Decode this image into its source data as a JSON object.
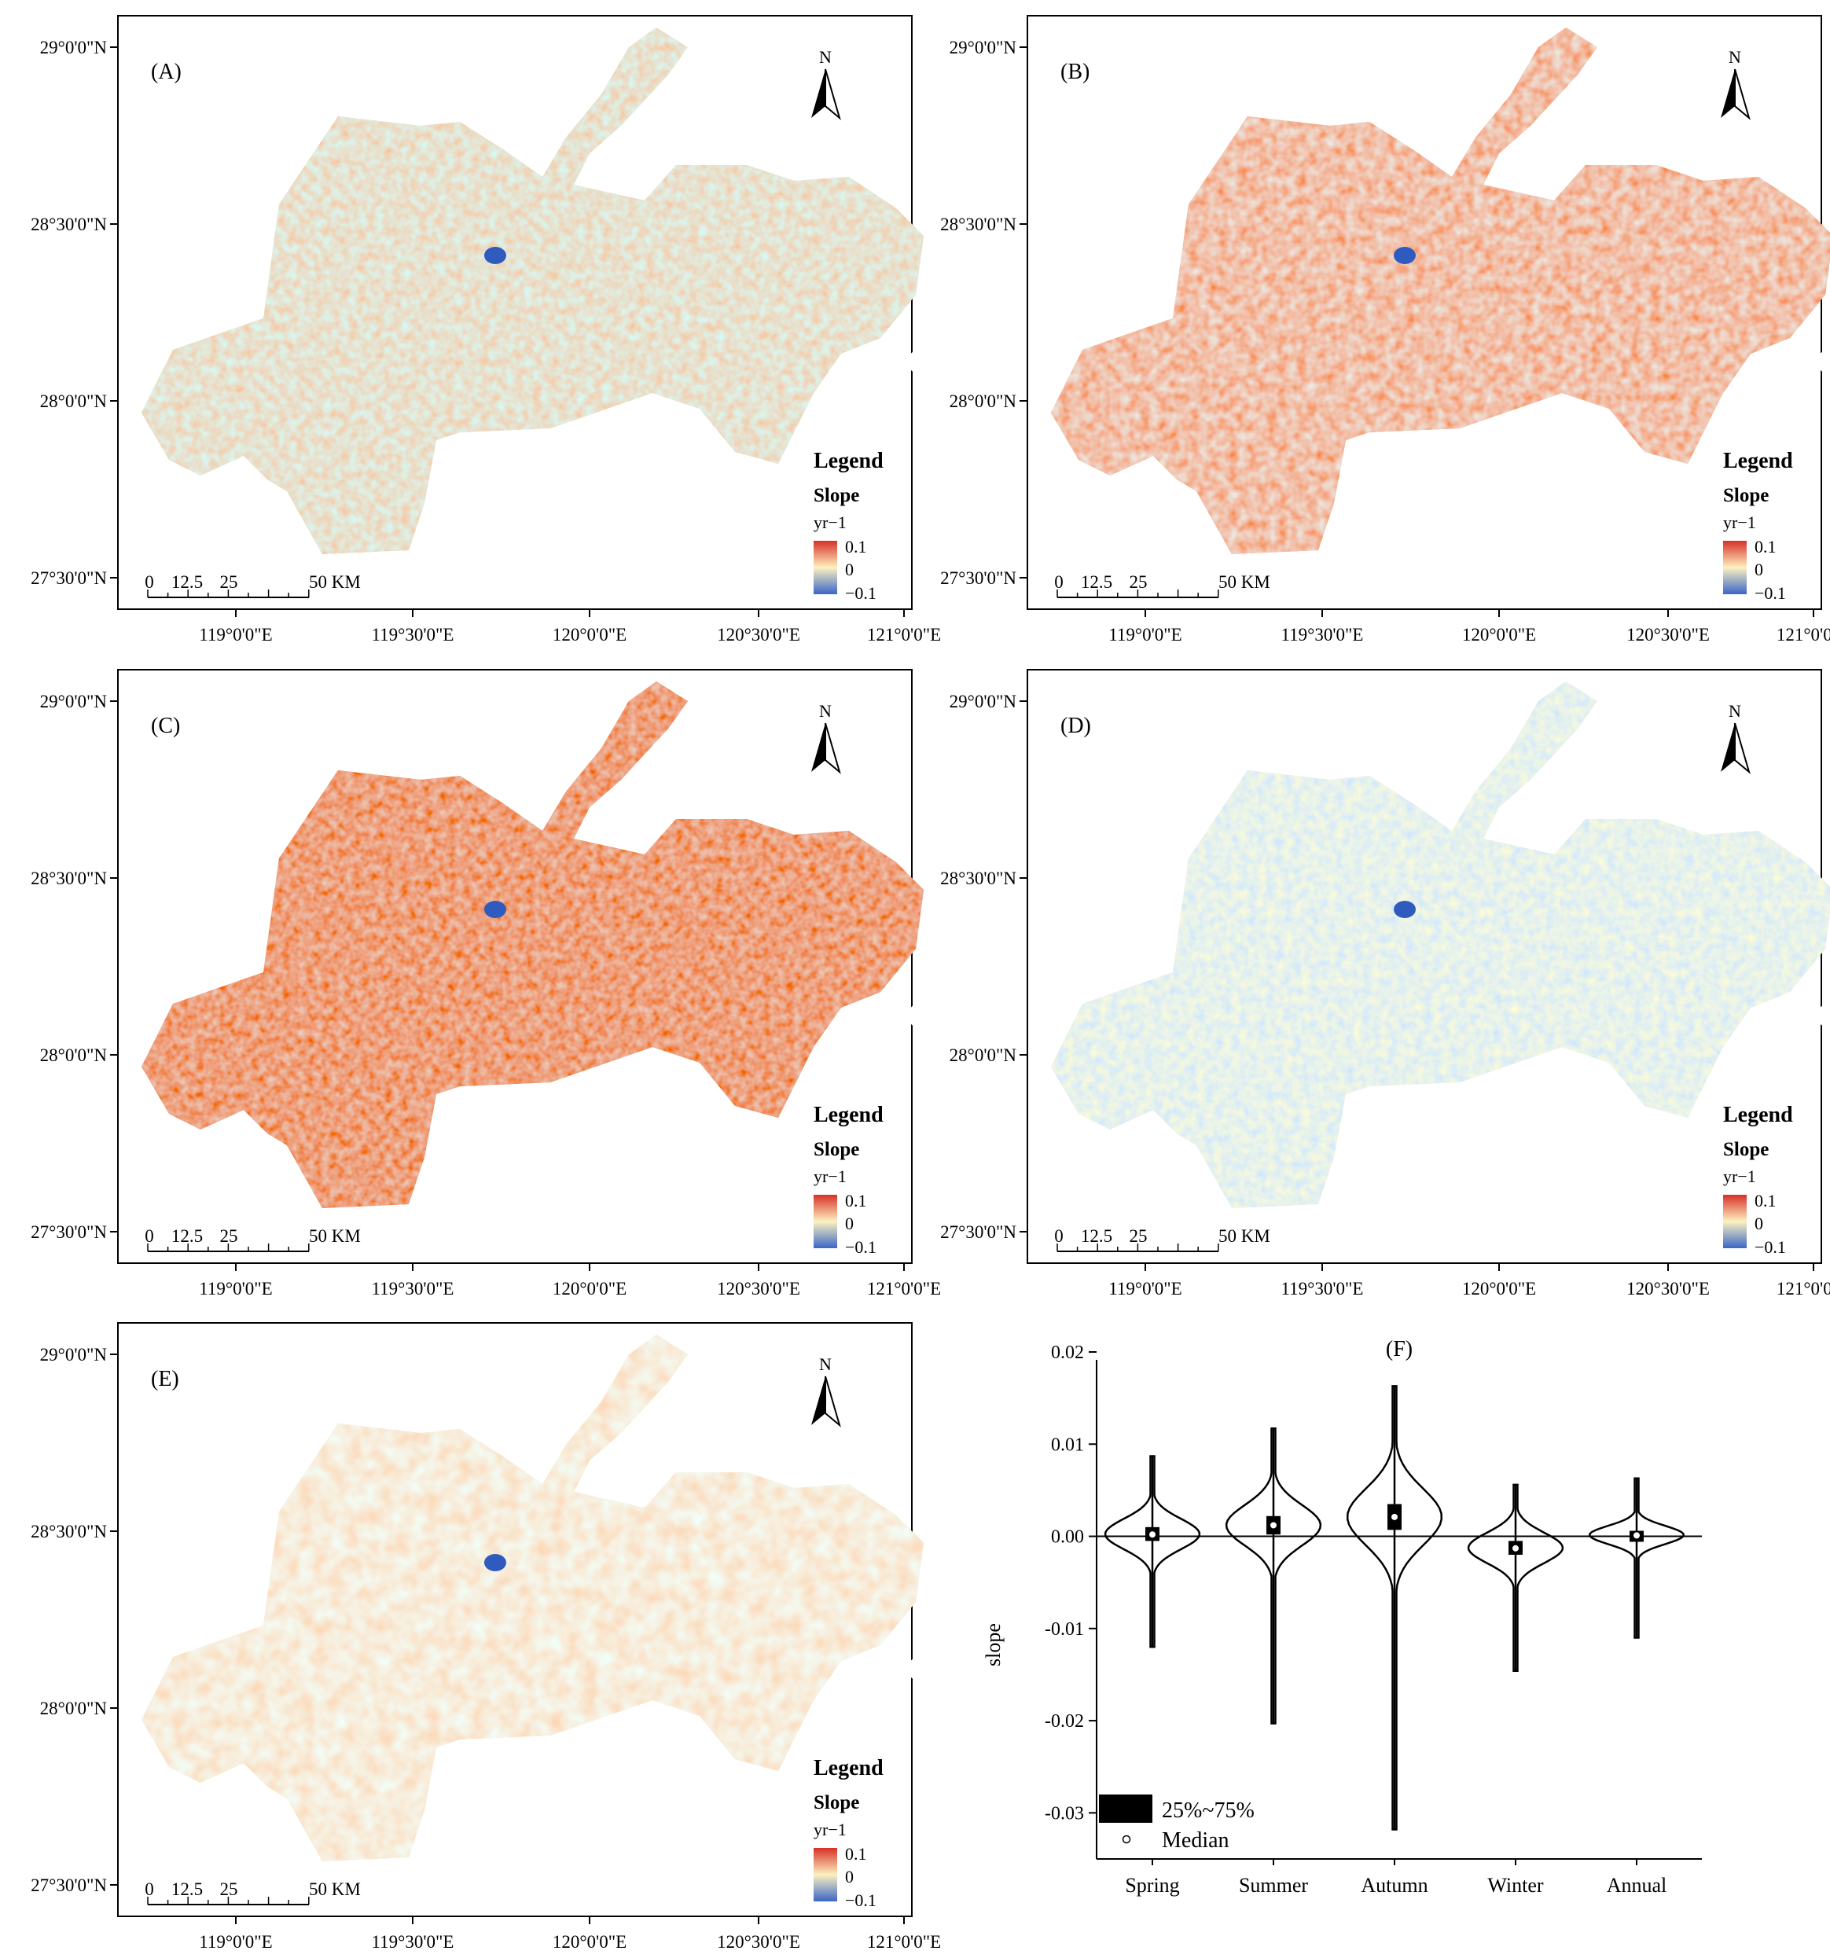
{
  "maps": [
    {
      "id": "A",
      "label": "(A)",
      "palette": "mild-warm"
    },
    {
      "id": "B",
      "label": "(B)",
      "palette": "strong-warm"
    },
    {
      "id": "C",
      "label": "(C)",
      "palette": "very-warm"
    },
    {
      "id": "D",
      "label": "(D)",
      "palette": "cool"
    },
    {
      "id": "E",
      "label": "(E)",
      "palette": "mild-warm-light"
    }
  ],
  "map_common": {
    "north": "N",
    "legend_title": "Legend",
    "legend_subtitle": "Slope",
    "legend_unit": "yr−1",
    "legend_max": "0.1",
    "legend_mid": "0",
    "legend_min": "−0.1",
    "scale_labels": [
      "0",
      "12.5",
      "25",
      "50 KM"
    ],
    "lat_ticks": [
      "29°0'0\"N",
      "28°30'0\"N",
      "28°0'0\"N",
      "27°30'0\"N"
    ],
    "lon_ticks": [
      "119°0'0\"E",
      "119°30'0\"E",
      "120°0'0\"E",
      "120°30'0\"E",
      "121°0'0\"E"
    ]
  },
  "colors": {
    "warm_high": "#d73027",
    "warm_mid": "#f4a582",
    "neutral": "#fdf1c0",
    "cool_mid": "#b9c8e4",
    "cool_high": "#3a66c8"
  },
  "chart_data": {
    "type": "violin",
    "title": "(F)",
    "xlabel": "",
    "ylabel": "slope",
    "ylim": [
      -0.035,
      0.02
    ],
    "yticks": [
      "0.02",
      "0.01",
      "0.00",
      "-0.01",
      "-0.02",
      "-0.03"
    ],
    "categories": [
      "Spring",
      "Summer",
      "Autumn",
      "Winter",
      "Annual"
    ],
    "series": [
      {
        "category": "Spring",
        "min": -0.012,
        "max": 0.0087,
        "q1": -0.0005,
        "q3": 0.001,
        "median": 0.0002
      },
      {
        "category": "Summer",
        "min": -0.0203,
        "max": 0.0117,
        "q1": 0.0002,
        "q3": 0.0022,
        "median": 0.0012
      },
      {
        "category": "Autumn",
        "min": -0.0318,
        "max": 0.0163,
        "q1": 0.0007,
        "q3": 0.0035,
        "median": 0.0021
      },
      {
        "category": "Winter",
        "min": -0.0146,
        "max": 0.0056,
        "q1": -0.002,
        "q3": -0.0005,
        "median": -0.0013
      },
      {
        "category": "Annual",
        "min": -0.011,
        "max": 0.0063,
        "q1": -0.0003,
        "q3": 0.0006,
        "median": 0.0001
      }
    ],
    "legend": [
      {
        "symbol": "box",
        "label": "25%~75%"
      },
      {
        "symbol": "circle",
        "label": "Median"
      }
    ]
  }
}
